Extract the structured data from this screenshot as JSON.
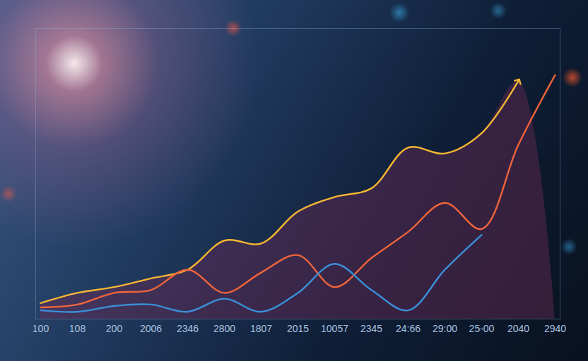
{
  "chart_data": {
    "type": "line",
    "categories": [
      "100",
      "108",
      "200",
      "2006",
      "2346",
      "2800",
      "1807",
      "2015",
      "10057",
      "2345",
      "24:66",
      "29:00",
      "25-00",
      "2040",
      "2940"
    ],
    "series": [
      {
        "color": "#f5b632",
        "type": "area",
        "marker": "arrow",
        "values": [
          5.5,
          9,
          11,
          14,
          17,
          27,
          26,
          37,
          42,
          45,
          59,
          57,
          64,
          82,
          null
        ]
      },
      {
        "color": "#f0643a",
        "values": [
          4,
          5,
          9,
          10,
          17,
          9,
          16,
          22,
          11,
          21,
          30,
          40,
          31,
          60,
          84
        ]
      },
      {
        "color": "#3a8fd8",
        "values": [
          3,
          2.5,
          4.5,
          5,
          2.5,
          7,
          2.5,
          9,
          19,
          10,
          3,
          17,
          29,
          null,
          null
        ]
      }
    ],
    "ylim": [
      0,
      100
    ],
    "tick_labels": "x"
  }
}
